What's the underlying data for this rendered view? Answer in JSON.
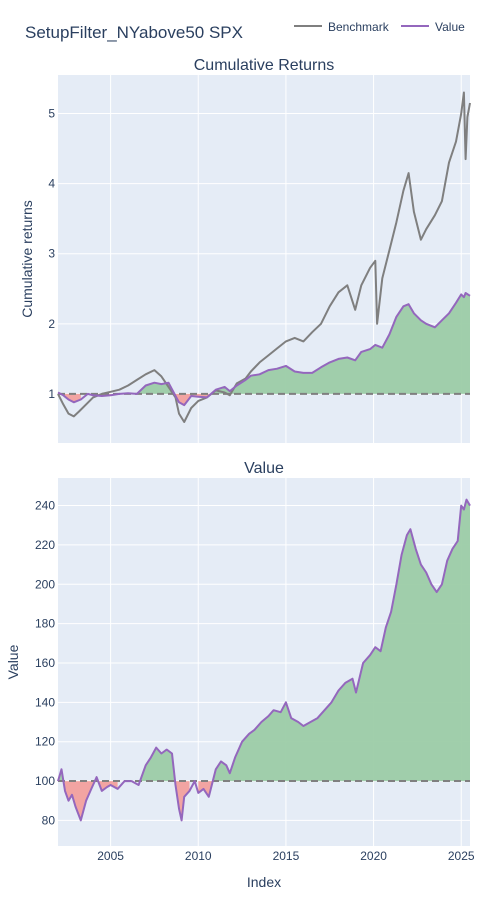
{
  "title": "SetupFilter_NYabove50 SPX",
  "legend": [
    {
      "label": "Benchmark",
      "color": "#7f7f7f"
    },
    {
      "label": "Value",
      "color": "#9467bd"
    }
  ],
  "colors": {
    "plot_bg": "#e5ecf6",
    "grid": "#ffffff",
    "benchmark": "#7f7f7f",
    "value": "#9467bd",
    "fill_positive": "#9ccca7",
    "fill_negative": "#f2a09d",
    "baseline": "#7f7f7f"
  },
  "chart_data": [
    {
      "type": "line",
      "title": "Cumulative Returns",
      "xlabel": "",
      "ylabel": "Cumulative returns",
      "xlim": [
        2002.0,
        2025.5
      ],
      "ylim": [
        0.3,
        5.55
      ],
      "xticks": [
        2005,
        2010,
        2015,
        2020,
        2025
      ],
      "yticks": [
        1,
        2,
        3,
        4,
        5
      ],
      "grid": true,
      "legend_position": "top-right",
      "baseline": 1,
      "series": [
        {
          "name": "Benchmark",
          "x": [
            2002.0,
            2002.3,
            2002.6,
            2002.9,
            2003.2,
            2003.6,
            2004.0,
            2004.5,
            2005.0,
            2005.5,
            2006.0,
            2006.5,
            2007.0,
            2007.5,
            2007.9,
            2008.3,
            2008.7,
            2008.9,
            2009.2,
            2009.6,
            2010.0,
            2010.5,
            2011.0,
            2011.5,
            2011.8,
            2012.2,
            2012.7,
            2013.0,
            2013.5,
            2014.0,
            2014.5,
            2015.0,
            2015.5,
            2016.0,
            2016.5,
            2017.0,
            2017.5,
            2018.0,
            2018.5,
            2018.95,
            2019.3,
            2019.8,
            2020.1,
            2020.2,
            2020.5,
            2020.9,
            2021.3,
            2021.7,
            2022.0,
            2022.3,
            2022.7,
            2023.0,
            2023.5,
            2023.9,
            2024.3,
            2024.7,
            2025.0,
            2025.15,
            2025.25,
            2025.35,
            2025.5
          ],
          "values": [
            1.0,
            0.85,
            0.72,
            0.68,
            0.75,
            0.85,
            0.95,
            1.0,
            1.03,
            1.06,
            1.12,
            1.2,
            1.28,
            1.34,
            1.25,
            1.1,
            0.95,
            0.72,
            0.6,
            0.8,
            0.9,
            0.95,
            1.05,
            1.02,
            0.98,
            1.15,
            1.22,
            1.32,
            1.45,
            1.55,
            1.65,
            1.75,
            1.8,
            1.75,
            1.88,
            2.0,
            2.25,
            2.45,
            2.55,
            2.2,
            2.55,
            2.8,
            2.9,
            2.0,
            2.65,
            3.05,
            3.45,
            3.9,
            4.15,
            3.6,
            3.2,
            3.35,
            3.55,
            3.75,
            4.3,
            4.6,
            5.0,
            5.3,
            4.35,
            4.95,
            5.15
          ]
        },
        {
          "name": "Value",
          "x": [
            2002.0,
            2002.3,
            2002.6,
            2002.9,
            2003.3,
            2003.7,
            2004.0,
            2004.5,
            2005.0,
            2005.5,
            2006.0,
            2006.5,
            2007.0,
            2007.5,
            2007.9,
            2008.3,
            2008.6,
            2008.9,
            2009.2,
            2009.6,
            2010.0,
            2010.5,
            2011.0,
            2011.5,
            2011.8,
            2012.2,
            2012.7,
            2013.0,
            2013.5,
            2014.0,
            2014.5,
            2015.0,
            2015.5,
            2016.0,
            2016.5,
            2017.0,
            2017.5,
            2018.0,
            2018.5,
            2018.95,
            2019.3,
            2019.8,
            2020.1,
            2020.5,
            2020.9,
            2021.3,
            2021.7,
            2022.0,
            2022.3,
            2022.7,
            2023.0,
            2023.5,
            2023.9,
            2024.3,
            2024.7,
            2025.0,
            2025.15,
            2025.25,
            2025.5
          ],
          "values": [
            1.02,
            0.98,
            0.92,
            0.88,
            0.92,
            1.0,
            0.98,
            0.97,
            0.98,
            1.0,
            1.01,
            1.0,
            1.12,
            1.16,
            1.14,
            1.16,
            1.02,
            0.88,
            0.84,
            0.97,
            0.96,
            0.95,
            1.06,
            1.1,
            1.04,
            1.12,
            1.2,
            1.26,
            1.28,
            1.34,
            1.36,
            1.4,
            1.32,
            1.3,
            1.3,
            1.38,
            1.45,
            1.5,
            1.52,
            1.48,
            1.6,
            1.64,
            1.7,
            1.66,
            1.85,
            2.1,
            2.25,
            2.28,
            2.15,
            2.05,
            2.0,
            1.95,
            2.05,
            2.15,
            2.3,
            2.42,
            2.38,
            2.44,
            2.4
          ]
        }
      ]
    },
    {
      "type": "area",
      "title": "Value",
      "xlabel": "Index",
      "ylabel": "Value",
      "xlim": [
        2002.0,
        2025.5
      ],
      "ylim": [
        67,
        254
      ],
      "xticks": [
        2005,
        2010,
        2015,
        2020,
        2025
      ],
      "yticks": [
        80,
        100,
        120,
        140,
        160,
        180,
        200,
        220,
        240
      ],
      "grid": true,
      "baseline": 100,
      "series": [
        {
          "name": "Value",
          "x": [
            2002.0,
            2002.2,
            2002.4,
            2002.6,
            2002.8,
            2003.0,
            2003.3,
            2003.6,
            2003.9,
            2004.2,
            2004.5,
            2004.8,
            2005.0,
            2005.4,
            2005.8,
            2006.2,
            2006.6,
            2007.0,
            2007.3,
            2007.6,
            2007.9,
            2008.2,
            2008.5,
            2008.7,
            2008.9,
            2009.05,
            2009.2,
            2009.5,
            2009.8,
            2010.0,
            2010.3,
            2010.6,
            2011.0,
            2011.3,
            2011.6,
            2011.8,
            2012.1,
            2012.5,
            2012.9,
            2013.2,
            2013.6,
            2014.0,
            2014.3,
            2014.7,
            2015.0,
            2015.3,
            2015.7,
            2016.0,
            2016.4,
            2016.8,
            2017.2,
            2017.6,
            2018.0,
            2018.4,
            2018.8,
            2019.0,
            2019.4,
            2019.8,
            2020.1,
            2020.4,
            2020.7,
            2021.0,
            2021.3,
            2021.6,
            2021.9,
            2022.1,
            2022.4,
            2022.7,
            2023.0,
            2023.3,
            2023.6,
            2023.9,
            2024.2,
            2024.5,
            2024.8,
            2025.0,
            2025.15,
            2025.3,
            2025.5
          ],
          "values": [
            100,
            106,
            95,
            90,
            93,
            87,
            80,
            90,
            96,
            102,
            95,
            97,
            98,
            96,
            100,
            100,
            98,
            108,
            112,
            117,
            114,
            116,
            114,
            98,
            86,
            80,
            92,
            95,
            100,
            94,
            96,
            92,
            106,
            110,
            108,
            104,
            112,
            120,
            124,
            126,
            130,
            133,
            136,
            135,
            140,
            132,
            130,
            128,
            130,
            132,
            136,
            140,
            146,
            150,
            152,
            145,
            160,
            164,
            168,
            166,
            178,
            186,
            200,
            215,
            225,
            228,
            218,
            210,
            206,
            200,
            196,
            200,
            212,
            218,
            222,
            240,
            238,
            243,
            240
          ]
        }
      ]
    }
  ]
}
